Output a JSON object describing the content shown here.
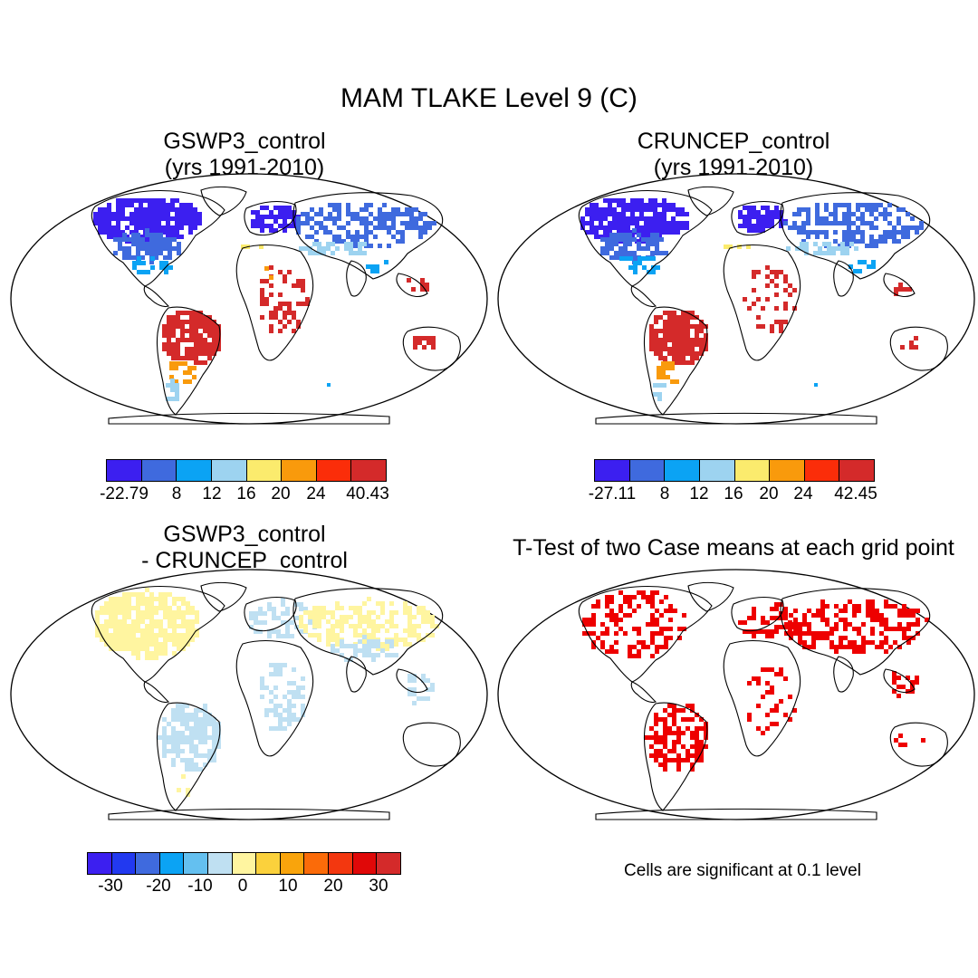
{
  "title": "MAM TLAKE Level 9 (C)",
  "panels": [
    {
      "title_line1": "GSWP3_control",
      "title_line2": "(yrs 1991-2010)"
    },
    {
      "title_line1": "CRUNCEP_control",
      "title_line2": "(yrs 1991-2010)"
    },
    {
      "title_line1": "GSWP3_control",
      "title_line2": "- CRUNCEP_control"
    },
    {
      "title_line1": "T-Test of two Case means at each grid point"
    }
  ],
  "colorbars": {
    "gswp3": {
      "colors": [
        "#3c1ff0",
        "#3f6ade",
        "#0ba3f4",
        "#9dd3f0",
        "#fbeb6d",
        "#f99a0c",
        "#fb2d09",
        "#d42a2a"
      ],
      "labels": [
        "-22.79",
        "8",
        "12",
        "16",
        "20",
        "24",
        "40.43"
      ]
    },
    "cruncep": {
      "colors": [
        "#3c1ff0",
        "#3f6ade",
        "#0ba3f4",
        "#9dd3f0",
        "#fbeb6d",
        "#f99a0c",
        "#fb2d09",
        "#d42a2a"
      ],
      "labels": [
        "-27.11",
        "8",
        "12",
        "16",
        "20",
        "24",
        "42.45"
      ]
    },
    "difference": {
      "colors": [
        "#3c1ff0",
        "#2239f0",
        "#3f6ade",
        "#0ba3f4",
        "#64c0f0",
        "#bfe0f2",
        "#fff5a0",
        "#fbd13c",
        "#f9a40c",
        "#fb6b09",
        "#f3370f",
        "#e00808",
        "#d42a2a"
      ],
      "labels": [
        "-30",
        "-20",
        "-10",
        "0",
        "10",
        "20",
        "30"
      ]
    }
  },
  "significance_note": "Cells are significant at 0.1 level",
  "significance_color": "#ee0000"
}
